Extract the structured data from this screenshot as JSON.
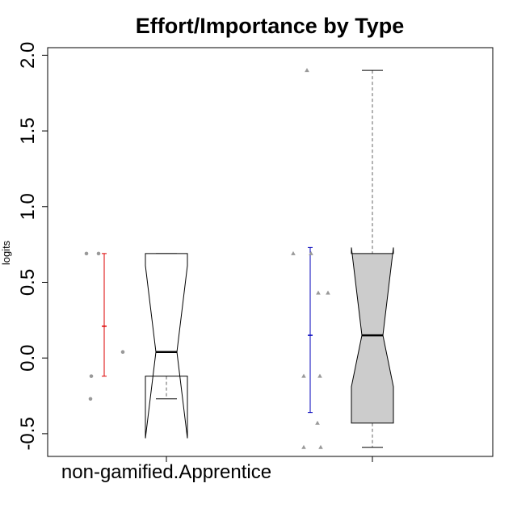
{
  "chart_data": {
    "type": "boxplot",
    "title": "Effort/Importance by Type",
    "ylabel": "logits",
    "xlabel": "",
    "ylim": [
      -0.65,
      2.05
    ],
    "yticks": [
      -0.5,
      0.0,
      0.5,
      1.0,
      1.5,
      2.0
    ],
    "ytick_labels": [
      "-0.5",
      "0.0",
      "0.5",
      "1.0",
      "1.5",
      "2.0"
    ],
    "grid": false,
    "groups": [
      {
        "label": "non-gamified.Apprentice",
        "box_color": "#ffffff",
        "notched": true,
        "q1": -0.12,
        "median": 0.04,
        "q3": 0.69,
        "notch_low": -0.53,
        "notch_high": 0.61,
        "whisker_low": -0.27,
        "whisker_high": 0.69,
        "mean": 0.21,
        "ci_low": -0.12,
        "ci_high": 0.69,
        "ci_color": "#dd0000",
        "points": [
          {
            "offset": -22,
            "y": 0.69
          },
          {
            "offset": -7,
            "y": 0.69
          },
          {
            "offset": -16,
            "y": -0.12
          },
          {
            "offset": -17,
            "y": -0.27
          },
          {
            "offset": 23,
            "y": 0.04
          }
        ]
      },
      {
        "label": "",
        "box_color": "#cccccc",
        "notched": true,
        "q1": -0.43,
        "median": 0.15,
        "q3": 0.69,
        "notch_low": -0.19,
        "notch_high": 0.73,
        "whisker_low": -0.59,
        "whisker_high": 1.9,
        "mean": 0.15,
        "ci_low": -0.36,
        "ci_high": 0.73,
        "ci_color": "#0000bb",
        "points": [
          {
            "offset": -21,
            "y": 0.69
          },
          {
            "offset": 1,
            "y": 0.69
          },
          {
            "offset": -4,
            "y": 1.9
          },
          {
            "offset": 10,
            "y": 0.43
          },
          {
            "offset": 22,
            "y": 0.43
          },
          {
            "offset": -8,
            "y": -0.12
          },
          {
            "offset": 12,
            "y": -0.12
          },
          {
            "offset": 9,
            "y": -0.43
          },
          {
            "offset": -8,
            "y": -0.59
          },
          {
            "offset": 13,
            "y": -0.59
          }
        ]
      }
    ]
  }
}
